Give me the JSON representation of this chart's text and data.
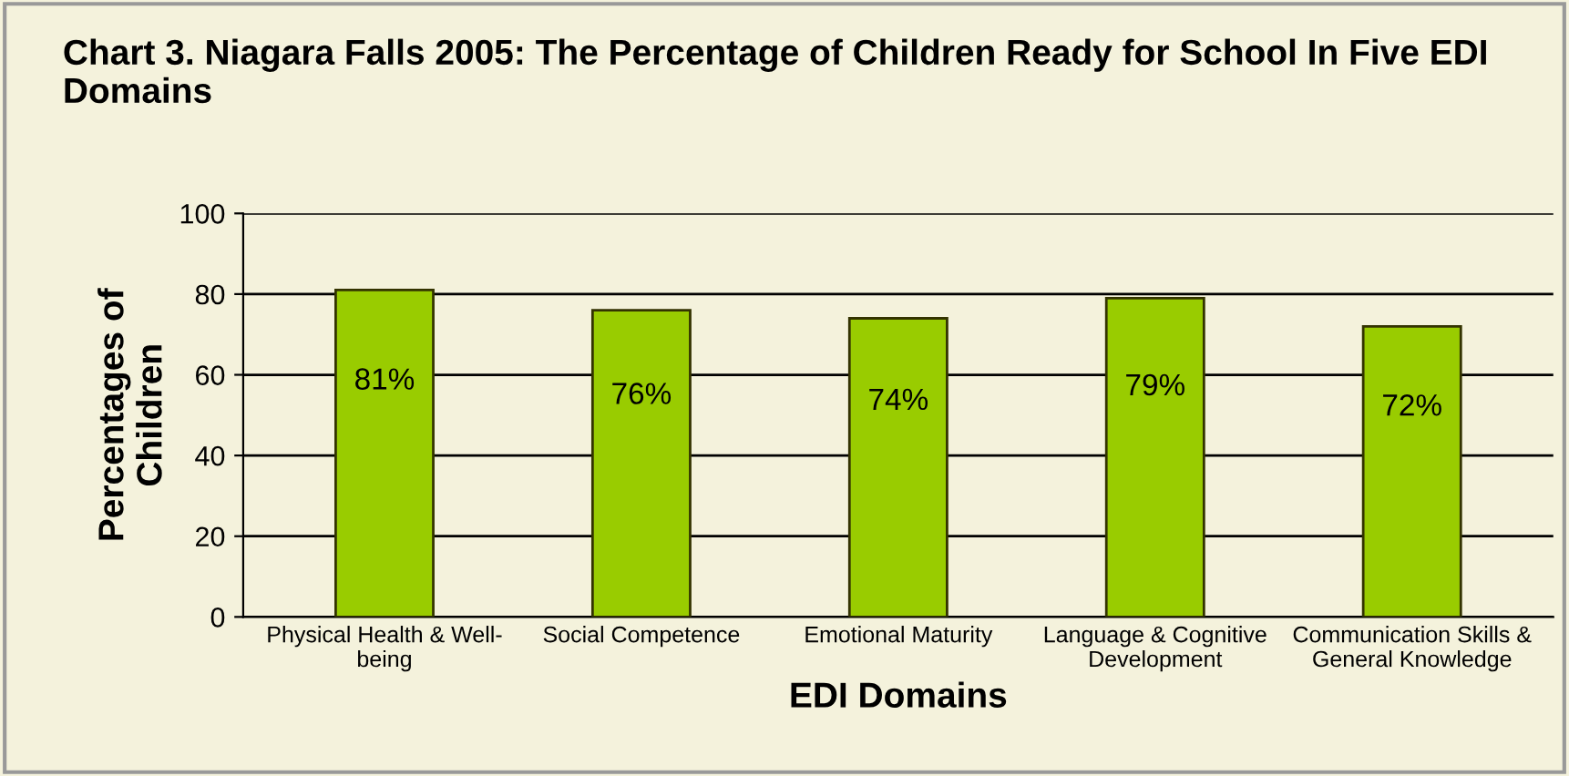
{
  "chart_data": {
    "type": "bar",
    "title": "Chart 3. Niagara Falls 2005: The Percentage of Children Ready for School In Five EDI Domains",
    "xlabel": "EDI Domains",
    "ylabel": "Percentages of\nChildren",
    "categories": [
      "Physical Health & Well-\nbeing",
      "Social Competence",
      "Emotional Maturity",
      "Language & Cognitive\nDevelopment",
      "Communication Skills &\nGeneral Knowledge"
    ],
    "values": [
      81,
      76,
      74,
      79,
      72
    ],
    "value_labels": [
      "81%",
      "76%",
      "74%",
      "79%",
      "72%"
    ],
    "color": "#99cc00",
    "ylim": [
      0,
      100
    ],
    "yticks": [
      0,
      20,
      40,
      60,
      80,
      100
    ],
    "grid": "y"
  }
}
